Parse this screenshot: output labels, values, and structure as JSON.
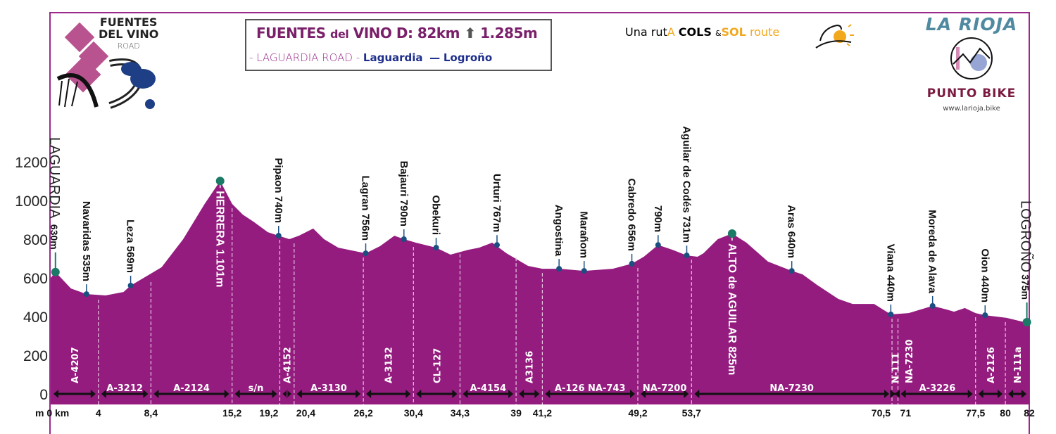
{
  "header": {
    "title_main": "FUENTES",
    "title_del": "del",
    "title_rest": "VINO D: 82km",
    "climb": "1.285m",
    "subtitle_road": "- LAGUARDIA ROAD -",
    "subtitle_from": "Laguardia",
    "subtitle_sep": "—",
    "subtitle_to": "Logroño"
  },
  "logos": {
    "fuentes_line1": "FUENTES",
    "fuentes_line2": "DEL VINO",
    "fuentes_line3": "ROAD",
    "cols_pre": "Una rut",
    "cols_a": "A",
    "cols_cols": "COLS",
    "cols_amp": "&",
    "cols_sol": "SOL",
    "cols_route": "route",
    "rioja_title": "LA RIOJA",
    "rioja_brand": "PUNTO BIKE",
    "rioja_url": "www.larioja.bike"
  },
  "colors": {
    "profile_fill": "#931c7e",
    "frame": "#9b2a8c",
    "marker_major": "#1a7a66",
    "marker_minor": "#1a4f80",
    "title_purple": "#7a1f6a",
    "title_blue": "#1e2f8c"
  },
  "chart_data": {
    "type": "area",
    "title": "",
    "xlabel": "km",
    "ylabel": "m",
    "x_unit_label": "m 0 km",
    "xlim": [
      0,
      82
    ],
    "ylim": [
      0,
      1200
    ],
    "yticks": [
      0,
      200,
      400,
      600,
      800,
      1000,
      1200
    ],
    "xticks": [
      "4",
      "8,4",
      "15,2",
      "19,2",
      "20,4",
      "26,2",
      "30,4",
      "34,3",
      "39",
      "41,2",
      "49,2",
      "53,7",
      "70,5",
      "71",
      "77,5",
      "80",
      "82"
    ],
    "xtick_values": [
      4,
      8.4,
      15.2,
      19.2,
      20.4,
      26.2,
      30.4,
      34.3,
      39,
      41.2,
      49.2,
      53.7,
      70.5,
      71,
      77.5,
      80,
      82
    ],
    "profile": [
      [
        0,
        600
      ],
      [
        0.4,
        630
      ],
      [
        1.7,
        545
      ],
      [
        3,
        516
      ],
      [
        4.6,
        509
      ],
      [
        6.1,
        527
      ],
      [
        6.7,
        560
      ],
      [
        7.8,
        600
      ],
      [
        9.3,
        655
      ],
      [
        11.1,
        800
      ],
      [
        12.9,
        982
      ],
      [
        14.2,
        1101
      ],
      [
        15.2,
        982
      ],
      [
        16.1,
        927
      ],
      [
        17,
        890
      ],
      [
        18.2,
        836
      ],
      [
        19.1,
        818
      ],
      [
        20,
        800
      ],
      [
        20.8,
        818
      ],
      [
        22,
        855
      ],
      [
        22.9,
        800
      ],
      [
        24.1,
        756
      ],
      [
        26.4,
        727
      ],
      [
        27.6,
        764
      ],
      [
        28.8,
        818
      ],
      [
        29.6,
        800
      ],
      [
        30.6,
        782
      ],
      [
        32.3,
        756
      ],
      [
        33.5,
        720
      ],
      [
        35,
        745
      ],
      [
        35.9,
        756
      ],
      [
        37,
        782
      ],
      [
        38.2,
        727
      ],
      [
        40,
        662
      ],
      [
        41.2,
        647
      ],
      [
        42.7,
        647
      ],
      [
        44.7,
        636
      ],
      [
        47.1,
        647
      ],
      [
        48.7,
        673
      ],
      [
        49.7,
        709
      ],
      [
        50.9,
        770
      ],
      [
        52.1,
        745
      ],
      [
        53.3,
        716
      ],
      [
        54.2,
        709
      ],
      [
        54.7,
        727
      ],
      [
        55.9,
        800
      ],
      [
        57.1,
        829
      ],
      [
        58.3,
        782
      ],
      [
        60.1,
        684
      ],
      [
        62.1,
        636
      ],
      [
        63,
        618
      ],
      [
        64.2,
        564
      ],
      [
        66,
        491
      ],
      [
        67.2,
        465
      ],
      [
        69,
        465
      ],
      [
        70.4,
        411
      ],
      [
        71.9,
        418
      ],
      [
        73.9,
        455
      ],
      [
        75.1,
        436
      ],
      [
        75.7,
        425
      ],
      [
        76.6,
        444
      ],
      [
        77.5,
        418
      ],
      [
        78.3,
        407
      ],
      [
        80.1,
        393
      ],
      [
        81.6,
        371
      ],
      [
        82,
        371
      ]
    ],
    "markers": [
      {
        "name": "LAGUARDIA",
        "elev": "630m",
        "km": 0.4,
        "alt": 630,
        "major": true,
        "style": "big"
      },
      {
        "name": "Navaridas 535m",
        "km": 3,
        "alt": 516,
        "major": false,
        "style": "above"
      },
      {
        "name": "Leza 569m",
        "km": 6.7,
        "alt": 560,
        "major": false,
        "style": "above"
      },
      {
        "name": "HERRERA 1.101m",
        "km": 14.2,
        "alt": 1101,
        "major": true,
        "style": "inside"
      },
      {
        "name": "Pipaon 740m",
        "km": 19.1,
        "alt": 818,
        "major": false,
        "style": "above"
      },
      {
        "name": "Lagran 756m",
        "km": 26.4,
        "alt": 727,
        "major": false,
        "style": "above"
      },
      {
        "name": "Bajauri 790m",
        "km": 29.6,
        "alt": 800,
        "major": false,
        "style": "above"
      },
      {
        "name": "Obekuri",
        "km": 32.3,
        "alt": 756,
        "major": false,
        "style": "above"
      },
      {
        "name": "Urturi 767m",
        "km": 37.4,
        "alt": 770,
        "major": false,
        "style": "above"
      },
      {
        "name": "Angostina",
        "km": 42.6,
        "alt": 647,
        "major": false,
        "style": "above"
      },
      {
        "name": "Marañom",
        "km": 44.7,
        "alt": 636,
        "major": false,
        "style": "above"
      },
      {
        "name": "Cabredo 656m",
        "km": 48.7,
        "alt": 673,
        "major": false,
        "style": "above"
      },
      {
        "name": "790m",
        "km": 50.9,
        "alt": 770,
        "major": false,
        "style": "above"
      },
      {
        "name": "Aguilar de Codés 731m",
        "km": 53.3,
        "alt": 716,
        "major": false,
        "style": "above"
      },
      {
        "name": "ALTO de AGUILAR 825m",
        "km": 57.1,
        "alt": 829,
        "major": true,
        "style": "inside"
      },
      {
        "name": "Aras 640m",
        "km": 62.1,
        "alt": 636,
        "major": false,
        "style": "above"
      },
      {
        "name": "Viana 440m",
        "km": 70.4,
        "alt": 411,
        "major": false,
        "style": "above"
      },
      {
        "name": "Moreda de Alava",
        "km": 73.9,
        "alt": 455,
        "major": false,
        "style": "above"
      },
      {
        "name": "Oion 440m",
        "km": 78.3,
        "alt": 407,
        "major": false,
        "style": "above"
      },
      {
        "name": "LOGROÑO",
        "elev": "375m",
        "km": 81.8,
        "alt": 371,
        "major": true,
        "style": "big"
      }
    ],
    "segments": [
      {
        "road": "A-4207",
        "from": 0,
        "to": 4,
        "vertical": true
      },
      {
        "road": "A-3212",
        "from": 4,
        "to": 8.4,
        "vertical": false
      },
      {
        "road": "A-2124",
        "from": 8.4,
        "to": 15.2,
        "vertical": false
      },
      {
        "road": "s/n",
        "from": 15.2,
        "to": 19.2,
        "vertical": false
      },
      {
        "road": "A-4152",
        "from": 19.2,
        "to": 20.4,
        "vertical": true
      },
      {
        "road": "A-3130",
        "from": 20.4,
        "to": 26.2,
        "vertical": false
      },
      {
        "road": "A-3132",
        "from": 26.2,
        "to": 30.4,
        "vertical": true
      },
      {
        "road": "CL-127",
        "from": 30.4,
        "to": 34.3,
        "vertical": true
      },
      {
        "road": "A-4154",
        "from": 34.3,
        "to": 39,
        "vertical": false
      },
      {
        "road": "A3136",
        "from": 39,
        "to": 41.2,
        "vertical": true
      },
      {
        "road": "A-126  NA-743",
        "from": 41.2,
        "to": 49.2,
        "vertical": false
      },
      {
        "road": "NA-7200",
        "from": 49.2,
        "to": 53.7,
        "vertical": false
      },
      {
        "road": "NA-7230",
        "from": 53.7,
        "to": 70.5,
        "vertical": false
      },
      {
        "road": "N-111",
        "from": 70.5,
        "to": 71,
        "vertical": true
      },
      {
        "road": "NA-7230",
        "from": 71,
        "to": 73,
        "vertical": true,
        "noarrow": true
      },
      {
        "road": "A-3226",
        "from": 71,
        "to": 77.5,
        "vertical": false
      },
      {
        "road": "A-2126",
        "from": 77.5,
        "to": 80,
        "vertical": true
      },
      {
        "road": "N-111a",
        "from": 80,
        "to": 82,
        "vertical": true
      }
    ]
  }
}
